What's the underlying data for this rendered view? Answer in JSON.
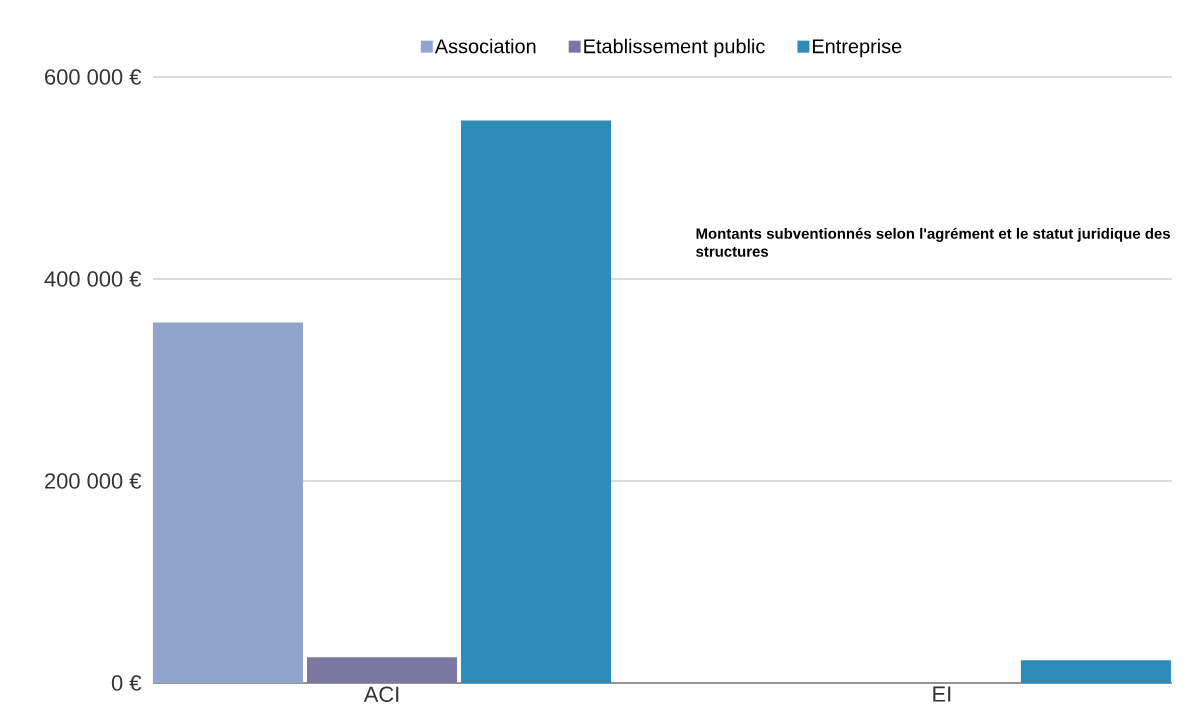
{
  "chart_data": {
    "type": "bar",
    "categories": [
      "ACI",
      "EI"
    ],
    "series": [
      {
        "name": "Association",
        "color": "#91a5cc",
        "values": [
          357000,
          null
        ]
      },
      {
        "name": "Etablissement public",
        "color": "#7c77a0",
        "values": [
          25500,
          null
        ]
      },
      {
        "name": "Entreprise",
        "color": "#2e8bba",
        "values": [
          557000,
          22500
        ]
      }
    ],
    "ylim": [
      0,
      600000
    ],
    "yticks": [
      {
        "value": 0,
        "label": "0 €"
      },
      {
        "value": 200000,
        "label": "200 000 €"
      },
      {
        "value": 400000,
        "label": "400 000 €"
      },
      {
        "value": 600000,
        "label": "600 000 €"
      }
    ],
    "grid": "y",
    "legend": "top",
    "annotations": [
      "Montants subventionnés selon l'agrément et le statut juridique des structures"
    ]
  }
}
